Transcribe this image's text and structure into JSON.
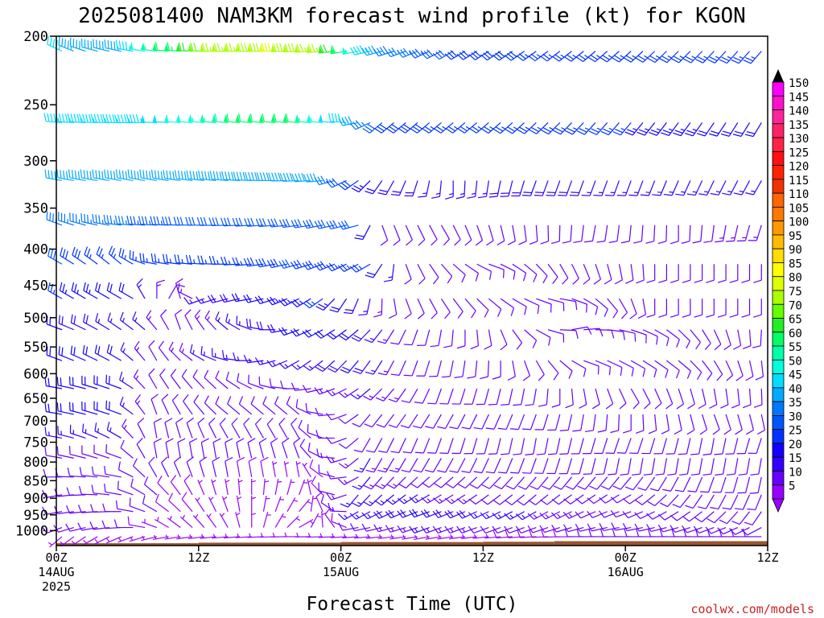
{
  "chart_data": {
    "type": "wind_barb_time_height",
    "title": "2025081400 NAM3KM forecast wind profile (kt) for KGON",
    "xlabel": "Forecast Time (UTC)",
    "credit": "coolwx.com/models",
    "y_axis": {
      "scale": "log",
      "unit": "hPa",
      "range": [
        1050,
        200
      ],
      "ticks": [
        "200",
        "250",
        "300",
        "350",
        "400",
        "450",
        "500",
        "550",
        "600",
        "650",
        "700",
        "750",
        "800",
        "850",
        "900",
        "950",
        "1000"
      ]
    },
    "x_axis": {
      "unit": "forecast hour",
      "range": [
        0,
        60
      ],
      "ticks": [
        {
          "hour": 0,
          "lines": [
            "00Z",
            "14AUG",
            "2025"
          ]
        },
        {
          "hour": 12,
          "lines": [
            "12Z"
          ]
        },
        {
          "hour": 24,
          "lines": [
            "00Z",
            "15AUG"
          ]
        },
        {
          "hour": 36,
          "lines": [
            "12Z"
          ]
        },
        {
          "hour": 48,
          "lines": [
            "00Z",
            "16AUG"
          ]
        },
        {
          "hour": 60,
          "lines": [
            "12Z"
          ]
        }
      ]
    },
    "colorbar": {
      "unit": "kt",
      "labels": [
        "150",
        "145",
        "140",
        "135",
        "130",
        "125",
        "120",
        "115",
        "110",
        "105",
        "100",
        "95",
        "90",
        "85",
        "80",
        "75",
        "70",
        "65",
        "60",
        "55",
        "50",
        "45",
        "40",
        "35",
        "30",
        "25",
        "20",
        "15",
        "10",
        "5"
      ],
      "colors": [
        "#ff00ff",
        "#ff11cc",
        "#ff2299",
        "#ff2266",
        "#ff2244",
        "#ff1111",
        "#ff2200",
        "#ee3300",
        "#ff6600",
        "#ff7700",
        "#ff9900",
        "#ffbb00",
        "#ffdd00",
        "#ffff00",
        "#ddff00",
        "#aaff00",
        "#66ff00",
        "#22ee22",
        "#00ff66",
        "#00ffaa",
        "#00ffdd",
        "#00ddff",
        "#00aaff",
        "#0077ff",
        "#0055ff",
        "#0033ff",
        "#1100ff",
        "#3300ff",
        "#6600ff",
        "#9900ff"
      ]
    },
    "surface_pressure": [
      {
        "hour_from": 0,
        "hour_to": 12,
        "pressure": 1042
      },
      {
        "hour_from": 12,
        "hour_to": 24,
        "pressure": 1040
      },
      {
        "hour_from": 24,
        "hour_to": 36,
        "pressure": 1038
      },
      {
        "hour_from": 36,
        "hour_to": 42,
        "pressure": 1037
      },
      {
        "hour_from": 42,
        "hour_to": 60,
        "pressure": 1035
      }
    ],
    "wind_field": {
      "note": "barbs every hour from F00 to F60 at each listed level; direction deg, speed kt",
      "levels": [
        {
          "p": 210,
          "dir": [
            [
              0,
              295,
              45
            ],
            [
              3,
              285,
              40
            ],
            [
              6,
              280,
              45
            ],
            [
              9,
              275,
              60
            ],
            [
              13,
              270,
              75
            ],
            [
              18,
              270,
              80
            ],
            [
              22,
              265,
              75
            ],
            [
              27,
              255,
              40
            ],
            [
              33,
              240,
              30
            ],
            [
              45,
              230,
              25
            ],
            [
              60,
              220,
              25
            ]
          ]
        },
        {
          "p": 265,
          "dir": [
            [
              0,
              275,
              45
            ],
            [
              6,
              270,
              45
            ],
            [
              10,
              275,
              50
            ],
            [
              15,
              275,
              60
            ],
            [
              20,
              275,
              60
            ],
            [
              24,
              275,
              45
            ],
            [
              27,
              230,
              30
            ],
            [
              36,
              230,
              25
            ],
            [
              48,
              220,
              25
            ],
            [
              60,
              210,
              20
            ]
          ]
        },
        {
          "p": 320,
          "dir": [
            [
              0,
              280,
              40
            ],
            [
              8,
              280,
              40
            ],
            [
              14,
              275,
              40
            ],
            [
              22,
              265,
              40
            ],
            [
              27,
              215,
              20
            ],
            [
              33,
              180,
              15
            ],
            [
              40,
              200,
              20
            ],
            [
              48,
              200,
              15
            ],
            [
              60,
              210,
              15
            ]
          ]
        },
        {
          "p": 370,
          "dir": [
            [
              0,
              290,
              35
            ],
            [
              6,
              275,
              35
            ],
            [
              12,
              270,
              30
            ],
            [
              18,
              265,
              30
            ],
            [
              25,
              255,
              30
            ],
            [
              27,
              160,
              10
            ],
            [
              32,
              150,
              10
            ],
            [
              38,
              170,
              10
            ],
            [
              45,
              190,
              10
            ],
            [
              52,
              180,
              10
            ],
            [
              60,
              200,
              15
            ]
          ]
        },
        {
          "p": 420,
          "dir": [
            [
              0,
              300,
              30
            ],
            [
              5,
              310,
              25
            ],
            [
              8,
              280,
              25
            ],
            [
              14,
              270,
              25
            ],
            [
              20,
              255,
              30
            ],
            [
              26,
              240,
              25
            ],
            [
              29,
              160,
              10
            ],
            [
              36,
              110,
              10
            ],
            [
              42,
              150,
              10
            ],
            [
              50,
              180,
              10
            ],
            [
              60,
              180,
              10
            ]
          ]
        },
        {
          "p": 470,
          "dir": [
            [
              0,
              300,
              25
            ],
            [
              6,
              300,
              20
            ],
            [
              9,
              30,
              10
            ],
            [
              12,
              250,
              15
            ],
            [
              16,
              260,
              20
            ],
            [
              22,
              235,
              25
            ],
            [
              29,
              160,
              10
            ],
            [
              36,
              130,
              10
            ],
            [
              42,
              100,
              10
            ],
            [
              50,
              180,
              10
            ],
            [
              60,
              180,
              10
            ]
          ]
        },
        {
          "p": 520,
          "dir": [
            [
              0,
              290,
              20
            ],
            [
              7,
              310,
              15
            ],
            [
              10,
              340,
              10
            ],
            [
              14,
              310,
              15
            ],
            [
              20,
              250,
              20
            ],
            [
              25,
              230,
              20
            ],
            [
              30,
              200,
              10
            ],
            [
              36,
              170,
              10
            ],
            [
              43,
              80,
              10
            ],
            [
              50,
              120,
              10
            ],
            [
              60,
              190,
              10
            ]
          ]
        },
        {
          "p": 575,
          "dir": [
            [
              0,
              290,
              20
            ],
            [
              5,
              300,
              20
            ],
            [
              8,
              330,
              10
            ],
            [
              12,
              300,
              15
            ],
            [
              20,
              240,
              15
            ],
            [
              25,
              220,
              20
            ],
            [
              30,
              200,
              10
            ],
            [
              37,
              180,
              10
            ],
            [
              44,
              110,
              10
            ],
            [
              52,
              130,
              10
            ],
            [
              60,
              180,
              10
            ]
          ]
        },
        {
          "p": 630,
          "dir": [
            [
              0,
              280,
              20
            ],
            [
              5,
              290,
              20
            ],
            [
              8,
              330,
              10
            ],
            [
              14,
              310,
              10
            ],
            [
              20,
              270,
              10
            ],
            [
              26,
              230,
              15
            ],
            [
              32,
              200,
              10
            ],
            [
              40,
              190,
              10
            ],
            [
              48,
              150,
              10
            ],
            [
              55,
              170,
              10
            ],
            [
              60,
              180,
              10
            ]
          ]
        },
        {
          "p": 685,
          "dir": [
            [
              0,
              280,
              20
            ],
            [
              5,
              290,
              20
            ],
            [
              8,
              340,
              10
            ],
            [
              14,
              310,
              10
            ],
            [
              20,
              310,
              10
            ],
            [
              26,
              220,
              10
            ],
            [
              32,
              210,
              10
            ],
            [
              40,
              200,
              10
            ],
            [
              48,
              180,
              10
            ],
            [
              55,
              160,
              10
            ],
            [
              60,
              170,
              10
            ]
          ]
        },
        {
          "p": 740,
          "dir": [
            [
              0,
              280,
              15
            ],
            [
              5,
              300,
              15
            ],
            [
              8,
              350,
              10
            ],
            [
              14,
              330,
              10
            ],
            [
              20,
              330,
              10
            ],
            [
              26,
              210,
              10
            ],
            [
              32,
              200,
              10
            ],
            [
              40,
              190,
              10
            ],
            [
              48,
              200,
              10
            ],
            [
              55,
              190,
              10
            ],
            [
              60,
              200,
              10
            ]
          ]
        },
        {
          "p": 790,
          "dir": [
            [
              0,
              280,
              10
            ],
            [
              5,
              290,
              10
            ],
            [
              8,
              350,
              10
            ],
            [
              14,
              350,
              10
            ],
            [
              20,
              340,
              10
            ],
            [
              26,
              210,
              15
            ],
            [
              32,
              210,
              10
            ],
            [
              40,
              200,
              10
            ],
            [
              48,
              190,
              10
            ],
            [
              55,
              190,
              10
            ],
            [
              60,
              190,
              10
            ]
          ]
        },
        {
          "p": 840,
          "dir": [
            [
              0,
              270,
              10
            ],
            [
              5,
              280,
              10
            ],
            [
              8,
              330,
              10
            ],
            [
              14,
              350,
              10
            ],
            [
              20,
              350,
              5
            ],
            [
              26,
              220,
              15
            ],
            [
              32,
              230,
              10
            ],
            [
              40,
              220,
              10
            ],
            [
              48,
              220,
              10
            ],
            [
              55,
              200,
              10
            ],
            [
              60,
              190,
              10
            ]
          ]
        },
        {
          "p": 890,
          "dir": [
            [
              0,
              260,
              10
            ],
            [
              5,
              280,
              10
            ],
            [
              8,
              310,
              10
            ],
            [
              14,
              350,
              5
            ],
            [
              20,
              20,
              5
            ],
            [
              25,
              220,
              15
            ],
            [
              31,
              240,
              15
            ],
            [
              40,
              230,
              10
            ],
            [
              48,
              240,
              10
            ],
            [
              55,
              210,
              10
            ],
            [
              60,
              200,
              10
            ]
          ]
        },
        {
          "p": 940,
          "dir": [
            [
              0,
              260,
              10
            ],
            [
              5,
              270,
              10
            ],
            [
              8,
              300,
              10
            ],
            [
              14,
              340,
              5
            ],
            [
              20,
              40,
              5
            ],
            [
              25,
              240,
              15
            ],
            [
              31,
              250,
              20
            ],
            [
              40,
              240,
              15
            ],
            [
              48,
              250,
              10
            ],
            [
              55,
              230,
              10
            ],
            [
              60,
              210,
              10
            ]
          ]
        },
        {
          "p": 990,
          "dir": [
            [
              0,
              250,
              10
            ],
            [
              6,
              270,
              10
            ],
            [
              9,
              300,
              5
            ],
            [
              14,
              330,
              5
            ],
            [
              20,
              60,
              5
            ],
            [
              25,
              260,
              10
            ],
            [
              31,
              250,
              15
            ],
            [
              40,
              250,
              10
            ],
            [
              48,
              260,
              10
            ],
            [
              55,
              250,
              10
            ],
            [
              60,
              240,
              10
            ]
          ]
        },
        {
          "p": 1020,
          "dir": [
            [
              0,
              230,
              5
            ],
            [
              9,
              260,
              5
            ],
            [
              20,
              270,
              5
            ],
            [
              31,
              260,
              5
            ],
            [
              44,
              270,
              10
            ],
            [
              60,
              270,
              10
            ]
          ]
        }
      ]
    }
  }
}
